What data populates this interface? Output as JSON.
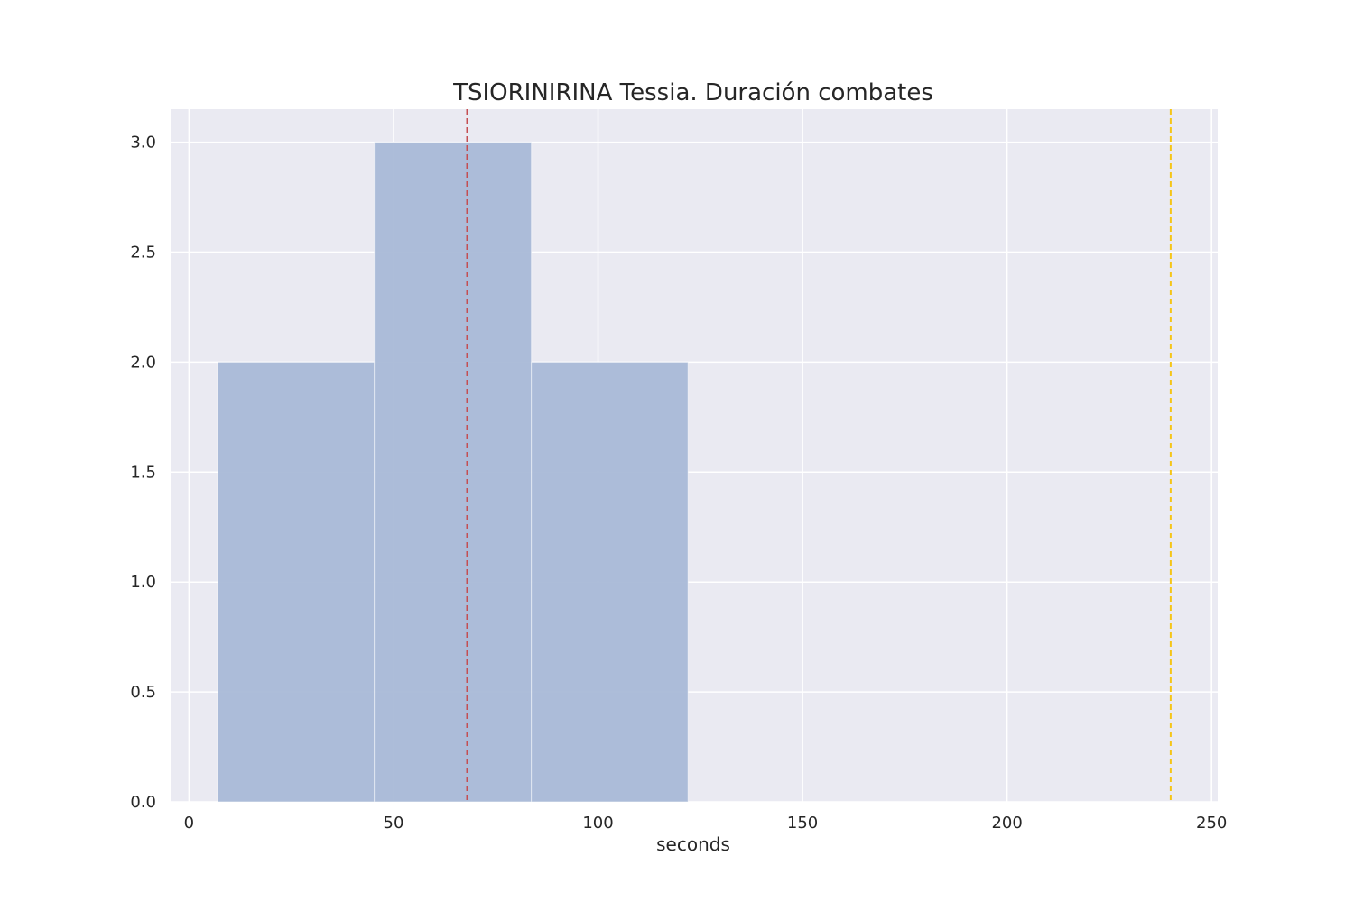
{
  "chart_data": {
    "type": "bar",
    "title": "TSIORINIRINA Tessia. Duración combates",
    "xlabel": "seconds",
    "ylabel": "",
    "xlim": [
      -4.5,
      251.5
    ],
    "ylim": [
      0,
      3.15
    ],
    "xticks": [
      0,
      50,
      100,
      150,
      200,
      250
    ],
    "xtick_labels": [
      "0",
      "50",
      "100",
      "150",
      "200",
      "250"
    ],
    "yticks": [
      0.0,
      0.5,
      1.0,
      1.5,
      2.0,
      2.5,
      3.0
    ],
    "ytick_labels": [
      "0.0",
      "0.5",
      "1.0",
      "1.5",
      "2.0",
      "2.5",
      "3.0"
    ],
    "grid": true,
    "bins": [
      {
        "start": 7,
        "end": 45.3,
        "count": 2
      },
      {
        "start": 45.3,
        "end": 83.7,
        "count": 3
      },
      {
        "start": 83.7,
        "end": 122,
        "count": 2
      }
    ],
    "reference_lines": [
      {
        "x": 68,
        "color": "#c44e52",
        "style": "dashed"
      },
      {
        "x": 240,
        "color": "#f5c518",
        "style": "dashed"
      }
    ],
    "colors": {
      "background": "#eaeaf2",
      "bar": "#a9b9d7",
      "grid": "#ffffff",
      "text": "#262626"
    }
  }
}
